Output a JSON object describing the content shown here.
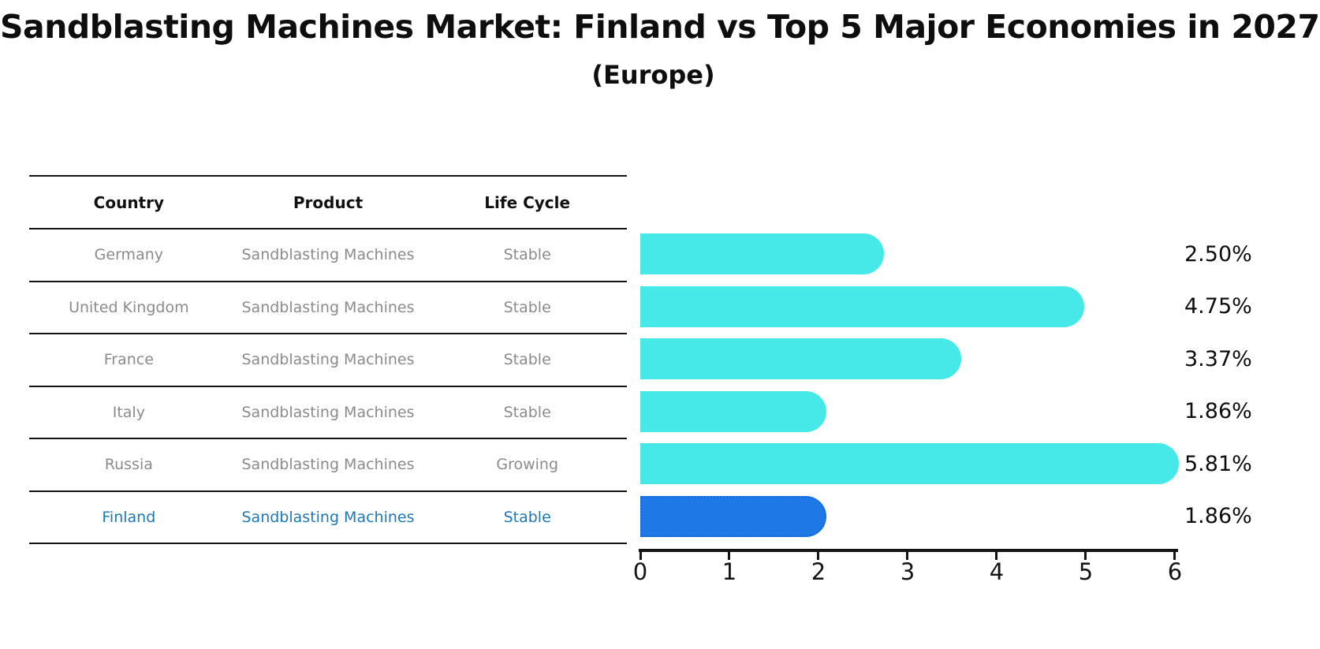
{
  "title": "Sandblasting Machines Market: Finland vs Top 5 Major Economies in 2027",
  "subtitle": "(Europe)",
  "table": {
    "headers": [
      "Country",
      "Product",
      "Life Cycle"
    ],
    "rows": [
      {
        "country": "Germany",
        "product": "Sandblasting Machines",
        "life_cycle": "Stable",
        "highlight": false
      },
      {
        "country": "United Kingdom",
        "product": "Sandblasting Machines",
        "life_cycle": "Stable",
        "highlight": false
      },
      {
        "country": "France",
        "product": "Sandblasting Machines",
        "life_cycle": "Stable",
        "highlight": false
      },
      {
        "country": "Italy",
        "product": "Sandblasting Machines",
        "life_cycle": "Stable",
        "highlight": false
      },
      {
        "country": "Russia",
        "product": "Sandblasting Machines",
        "life_cycle": "Growing",
        "highlight": false
      },
      {
        "country": "Finland",
        "product": "Sandblasting Machines",
        "life_cycle": "Stable",
        "highlight": true
      }
    ]
  },
  "chart_data": {
    "type": "bar",
    "orientation": "horizontal",
    "title": "Sandblasting Machines Market: Finland vs Top 5 Major Economies in 2027",
    "subtitle": "(Europe)",
    "categories": [
      "Germany",
      "United Kingdom",
      "France",
      "Italy",
      "Russia",
      "Finland"
    ],
    "values": [
      2.5,
      4.75,
      3.37,
      1.86,
      5.81,
      1.86
    ],
    "value_labels": [
      "2.50%",
      "4.75%",
      "3.37%",
      "1.86%",
      "5.81%",
      "1.86%"
    ],
    "xlabel": "",
    "ylabel": "",
    "xlim": [
      0,
      6
    ],
    "x_tick_labels": [
      "0",
      "1",
      "2",
      "3",
      "4",
      "5",
      "6"
    ],
    "grid": false,
    "legend": false,
    "highlight_category": "Finland",
    "highlight_style": "dotted-border"
  },
  "colors": {
    "bar": "#47e8e8",
    "highlight_bar": "#1e78e6",
    "highlight_bar_border": "#1363db",
    "highlight_text": "#1f77b4",
    "table_text": "#8b8b8b",
    "heading_text": "#111111"
  }
}
